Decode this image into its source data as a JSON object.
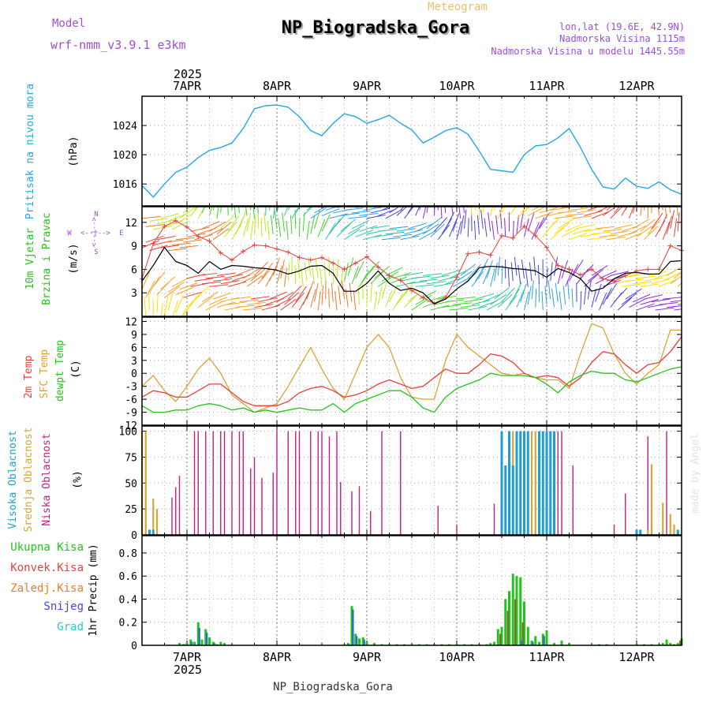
{
  "header": {
    "model_label": "Model",
    "model_name": "wrf-nmm_v3.9.1 e3km",
    "title": "NP_Biogradska_Gora",
    "subtitle": "Meteogram",
    "lonlat": "lon,lat (19.6E, 42.9N)",
    "altitude": "Nadmorska Visina 1115m",
    "model_altitude": "Nadmorska Visina u modelu 1445.55m",
    "footer": "NP_Biogradska_Gora",
    "watermark": "made by Angel"
  },
  "colors": {
    "pressure": "#1fa7e6",
    "temp2m": "#e8413a",
    "sfc": "#d8a533",
    "dewpt": "#22c41a",
    "high_cloud": "#1f9fd0",
    "mid_cloud": "#d8a533",
    "low_cloud": "#c21f80",
    "total_precip": "#22c41a",
    "conv_precip": "#e8413a",
    "freezing": "#f07a27",
    "snow": "#4a43e0",
    "hail": "#2ec7c7",
    "purple": "#9a4fd6"
  },
  "time_axis": {
    "year": "2025",
    "days": [
      "7APR",
      "8APR",
      "9APR",
      "10APR",
      "11APR",
      "12APR"
    ],
    "start_hour": -12,
    "end_hour": 132
  },
  "chart_data": [
    {
      "type": "line",
      "name": "pressure",
      "title": "Pritisak na nivou mora",
      "ylabel": "(hPa)",
      "ylim": [
        1013,
        1028
      ],
      "yticks": [
        1016,
        1020,
        1024
      ],
      "series": [
        {
          "name": "Mean sea level pressure",
          "x": [
            -12,
            -9,
            -6,
            -3,
            0,
            3,
            6,
            9,
            12,
            15,
            18,
            21,
            24,
            27,
            30,
            33,
            36,
            39,
            42,
            45,
            48,
            51,
            54,
            57,
            60,
            63,
            66,
            69,
            72,
            75,
            78,
            81,
            84,
            87,
            90,
            93,
            96,
            99,
            102,
            105,
            108,
            111,
            114,
            117,
            120,
            123,
            126,
            129,
            132
          ],
          "values": [
            1015.8,
            1014.2,
            1016,
            1017.6,
            1018.3,
            1019.6,
            1020.6,
            1021,
            1021.6,
            1023.6,
            1026.3,
            1026.7,
            1026.8,
            1026.5,
            1025.2,
            1023.3,
            1022.6,
            1024.3,
            1025.6,
            1025.2,
            1024.3,
            1024.8,
            1025.4,
            1024.3,
            1023.4,
            1021.6,
            1022.4,
            1023.3,
            1023.7,
            1022.8,
            1020.5,
            1018,
            1017.8,
            1017.6,
            1020,
            1021.2,
            1021.4,
            1022.3,
            1023.6,
            1021,
            1018,
            1015.6,
            1015.3,
            1016.8,
            1015.7,
            1015.4,
            1016.3,
            1015.2,
            1014.6
          ]
        }
      ]
    },
    {
      "type": "line",
      "name": "wind",
      "title": "10m Vjetar Brzina i Pravac",
      "ylabel": "(m/s)",
      "ylim": [
        0,
        14
      ],
      "yticks": [
        3,
        6,
        9,
        12
      ],
      "compass": {
        "n": "N",
        "e": "E",
        "s": "S",
        "w": "W",
        "arrow": "<--|-->"
      },
      "series": [
        {
          "name": "Wind speed",
          "x": [
            -12,
            -9,
            -6,
            -3,
            0,
            3,
            6,
            9,
            12,
            15,
            18,
            21,
            24,
            27,
            30,
            33,
            36,
            39,
            42,
            45,
            48,
            51,
            54,
            57,
            60,
            63,
            66,
            69,
            72,
            75,
            78,
            81,
            84,
            87,
            90,
            93,
            96,
            99,
            102,
            105,
            108,
            111,
            114,
            117,
            120,
            123,
            126,
            129,
            132
          ],
          "values": [
            4.5,
            6.5,
            8.8,
            7,
            6.5,
            5.5,
            7,
            6,
            6.5,
            6.4,
            6.2,
            6.1,
            5.9,
            5.4,
            5.8,
            6.4,
            6.5,
            5.5,
            3.2,
            3.2,
            4.2,
            5.8,
            4.2,
            3.3,
            3.6,
            3,
            1.6,
            2.2,
            3.5,
            4.5,
            6.2,
            6.4,
            6.3,
            6.1,
            6,
            5.8,
            5,
            6.1,
            5.6,
            4.8,
            3.2,
            3.6,
            4.8,
            5.5,
            5.6,
            5.4,
            5.4,
            7,
            7.1
          ]
        },
        {
          "name": "Wind gust",
          "x": [
            -12,
            -9,
            -6,
            -3,
            0,
            3,
            6,
            9,
            12,
            15,
            18,
            21,
            24,
            27,
            30,
            33,
            36,
            39,
            42,
            45,
            48,
            51,
            54,
            57,
            60,
            63,
            66,
            69,
            72,
            75,
            78,
            81,
            84,
            87,
            90,
            93,
            96,
            99,
            102,
            105,
            108,
            111,
            114,
            117,
            120,
            123,
            126,
            129,
            132
          ],
          "values": [
            4.8,
            9.3,
            11.5,
            12.2,
            11.4,
            10.2,
            9.6,
            8.1,
            7.2,
            8.3,
            9.1,
            9,
            8.6,
            8.2,
            7.5,
            7.2,
            7.5,
            6.8,
            6,
            6.8,
            7.6,
            6.3,
            5.2,
            4.6,
            3.3,
            2.4,
            1.6,
            2.4,
            5,
            8,
            8.2,
            7.8,
            10.3,
            10,
            11.5,
            10.3,
            8.8,
            6.5,
            6,
            5.3,
            6,
            4.8,
            4.5,
            5.2,
            5.8,
            6,
            6,
            9,
            8.4
          ]
        }
      ]
    },
    {
      "type": "line",
      "name": "temperature",
      "title": [
        "2m Temp",
        "SFC Temp",
        "dewpt Temp"
      ],
      "ylabel": "(C)",
      "ylim": [
        -12,
        13
      ],
      "yticks": [
        -12,
        -9,
        -6,
        -3,
        0,
        3,
        6,
        9,
        12
      ],
      "series": [
        {
          "name": "2m Temp",
          "x": [
            -12,
            -9,
            -6,
            -3,
            0,
            3,
            6,
            9,
            12,
            15,
            18,
            21,
            24,
            27,
            30,
            33,
            36,
            39,
            42,
            45,
            48,
            51,
            54,
            57,
            60,
            63,
            66,
            69,
            72,
            75,
            78,
            81,
            84,
            87,
            90,
            93,
            96,
            99,
            102,
            105,
            108,
            111,
            114,
            117,
            120,
            123,
            126,
            129,
            132
          ],
          "values": [
            -5.5,
            -4,
            -4.5,
            -5.5,
            -5.5,
            -4,
            -2.5,
            -2.5,
            -4.5,
            -6.5,
            -7.5,
            -7.5,
            -7.5,
            -6.5,
            -4.5,
            -3.5,
            -3,
            -4,
            -5.5,
            -5,
            -4,
            -2.5,
            -1.5,
            -2.5,
            -3.5,
            -3,
            -1,
            1,
            0,
            0,
            2,
            4.5,
            4,
            2.5,
            0,
            -1,
            -0.5,
            -1,
            -3,
            -1,
            2.5,
            5,
            4.5,
            2,
            0,
            2,
            2.5,
            5,
            8.5
          ]
        },
        {
          "name": "SFC Temp",
          "x": [
            -12,
            -9,
            -6,
            -3,
            0,
            3,
            6,
            9,
            12,
            15,
            18,
            21,
            24,
            27,
            30,
            33,
            36,
            39,
            42,
            45,
            48,
            51,
            54,
            57,
            60,
            63,
            66,
            69,
            72,
            75,
            78,
            81,
            84,
            87,
            90,
            93,
            96,
            99,
            102,
            105,
            108,
            111,
            114,
            117,
            120,
            123,
            126,
            129,
            132
          ],
          "values": [
            -3,
            -0.5,
            -4,
            -6.5,
            -3,
            1,
            3.5,
            0,
            -5,
            -7,
            -9,
            -8,
            -7,
            -3,
            1.5,
            6,
            1,
            -3.5,
            -6,
            0,
            6,
            9,
            6,
            -1,
            -5.5,
            -6,
            -6,
            3,
            9,
            6,
            4,
            2,
            0,
            -0.5,
            0,
            -1,
            -1.5,
            -1.5,
            -3.5,
            4.5,
            11.5,
            10.5,
            4.5,
            0,
            -2.5,
            0,
            2,
            10,
            10
          ]
        },
        {
          "name": "dewpt Temp",
          "x": [
            -12,
            -9,
            -6,
            -3,
            0,
            3,
            6,
            9,
            12,
            15,
            18,
            21,
            24,
            27,
            30,
            33,
            36,
            39,
            42,
            45,
            48,
            51,
            54,
            57,
            60,
            63,
            66,
            69,
            72,
            75,
            78,
            81,
            84,
            87,
            90,
            93,
            96,
            99,
            102,
            105,
            108,
            111,
            114,
            117,
            120,
            123,
            126,
            129,
            132
          ],
          "values": [
            -7.5,
            -9,
            -9,
            -8.5,
            -8.5,
            -7.5,
            -7,
            -7.5,
            -8.5,
            -8,
            -9,
            -8.5,
            -9,
            -8.5,
            -8,
            -8.5,
            -8.5,
            -7,
            -9,
            -7,
            -6,
            -5,
            -4,
            -4,
            -5.5,
            -8,
            -9,
            -5.5,
            -3.5,
            -2.5,
            -1.5,
            0,
            -0.5,
            -0.5,
            -0.5,
            -1,
            -2.5,
            -4.5,
            -2,
            -0.5,
            0.5,
            0,
            0,
            -1.5,
            -2,
            -1,
            0,
            1,
            1.5
          ]
        }
      ]
    },
    {
      "type": "bar",
      "name": "cloud",
      "title": [
        "Visoka Oblacnost",
        "Srednja Oblacnost",
        "Niska Oblacnost"
      ],
      "ylabel": "(%)",
      "ylim": [
        0,
        105
      ],
      "yticks": [
        0,
        25,
        50,
        75,
        100
      ],
      "series": [
        {
          "name": "Niska Oblacnost",
          "x": [
            -10,
            -4,
            -3,
            -2,
            2,
            3,
            5,
            7,
            9,
            10,
            12,
            14,
            15,
            17,
            18,
            20,
            23,
            24,
            27,
            29,
            30,
            33,
            35,
            36,
            38,
            40,
            41,
            44,
            46,
            49,
            52,
            57,
            67,
            72,
            82,
            88,
            89,
            90,
            91,
            92,
            93,
            94,
            95,
            96,
            97,
            98,
            99,
            100,
            103,
            114,
            117,
            123,
            128
          ],
          "values": [
            0,
            36,
            46,
            57,
            100,
            100,
            100,
            100,
            100,
            100,
            100,
            100,
            100,
            64,
            75,
            55,
            60,
            100,
            100,
            100,
            100,
            100,
            100,
            100,
            95,
            100,
            51,
            42,
            47,
            23,
            100,
            100,
            28,
            10,
            30,
            90,
            100,
            100,
            100,
            95,
            90,
            100,
            100,
            70,
            100,
            100,
            100,
            100,
            67,
            10,
            40,
            95,
            100
          ]
        },
        {
          "name": "Srednja Oblacnost",
          "x": [
            -12,
            -11,
            -9,
            -8,
            84,
            86,
            87,
            88,
            89,
            90,
            91,
            92,
            93,
            123,
            124,
            127,
            129,
            130
          ],
          "values": [
            100,
            100,
            35,
            25,
            90,
            100,
            100,
            100,
            100,
            95,
            100,
            100,
            100,
            5,
            68,
            31,
            20,
            10
          ]
        },
        {
          "name": "Visoka Oblacnost",
          "x": [
            -10,
            -9,
            84,
            85,
            86,
            87,
            88,
            89,
            90,
            91,
            94,
            95,
            96,
            97,
            98,
            120,
            121,
            131
          ],
          "values": [
            5,
            5,
            100,
            67,
            100,
            67,
            100,
            100,
            100,
            100,
            100,
            100,
            100,
            100,
            100,
            5,
            5,
            5
          ]
        }
      ]
    },
    {
      "type": "bar",
      "name": "precip",
      "title": [
        "Ukupna Kisa",
        "Konvek.Kisa",
        "Zaledj.Kisa",
        "Snijeg",
        "Grad"
      ],
      "ylabel": "1hr Precip (mm)",
      "ylim": [
        0,
        0.95
      ],
      "yticks": [
        0,
        0.2,
        0.4,
        0.6,
        0.8
      ],
      "series": [
        {
          "name": "Ukupna Kisa",
          "x": [
            -2,
            -1,
            0,
            1,
            2,
            3,
            4,
            5,
            6,
            7,
            8,
            9,
            10,
            42,
            43,
            44,
            45,
            46,
            47,
            48,
            50,
            52,
            54,
            56,
            58,
            60,
            62,
            64,
            66,
            68,
            70,
            72,
            74,
            76,
            78,
            80,
            81,
            82,
            83,
            84,
            85,
            86,
            87,
            88,
            89,
            90,
            91,
            92,
            93,
            94,
            95,
            96,
            98,
            100,
            102,
            110,
            112,
            120,
            122,
            124,
            126,
            127,
            128,
            129,
            130,
            131,
            132
          ],
          "values": [
            0.02,
            0.01,
            0.02,
            0.05,
            0.03,
            0.2,
            0.05,
            0.14,
            0.07,
            0.03,
            0.01,
            0.03,
            0.02,
            0.01,
            0.02,
            0.34,
            0.1,
            0.06,
            0.07,
            0.03,
            0.02,
            0.01,
            0.01,
            0.01,
            0.01,
            0.01,
            0.01,
            0.01,
            0.01,
            0.01,
            0.01,
            0.01,
            0.01,
            0.01,
            0.01,
            0.01,
            0.02,
            0.03,
            0.14,
            0.16,
            0.4,
            0.47,
            0.62,
            0.6,
            0.59,
            0.38,
            0.16,
            0.04,
            0.08,
            0.03,
            0.1,
            0.13,
            0.02,
            0.04,
            0.02,
            0.01,
            0.01,
            0.01,
            0.01,
            0.01,
            0.01,
            0.02,
            0.05,
            0.02,
            0.01,
            0.02,
            0.06
          ]
        },
        {
          "name": "Konvek.Kisa",
          "x": [
            84,
            86,
            88,
            90,
            132
          ],
          "values": [
            0.1,
            0.3,
            0.4,
            0.2,
            0.04
          ]
        },
        {
          "name": "Snijeg",
          "x": [
            -1,
            1,
            3,
            5,
            7,
            43,
            44,
            45,
            47,
            89,
            92,
            95
          ],
          "values": [
            0.01,
            0.03,
            0.15,
            0.11,
            0.02,
            0.01,
            0.31,
            0.08,
            0.05,
            0.04,
            0.03,
            0.08
          ]
        }
      ]
    }
  ]
}
